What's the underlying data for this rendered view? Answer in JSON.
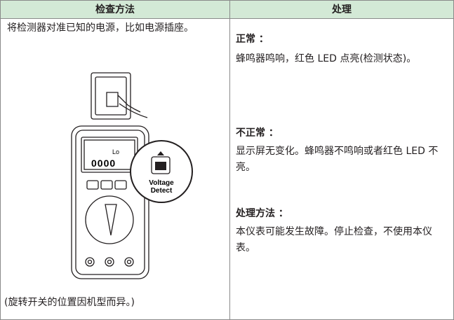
{
  "table": {
    "headers": [
      "检查方法",
      "处理"
    ],
    "method": {
      "text": "将检测器对准已知的电源，比如电源插座。",
      "note": "(旋转开关的位置因机型而异。)",
      "illustration": {
        "display_top": "Lo",
        "display_main": "0000",
        "button_label_1": "Voltage",
        "button_label_2": "Detect"
      }
    },
    "actions": [
      {
        "heading": "正常 ：",
        "text": "蜂鸣器鸣响，红色 LED 点亮(检测状态)。"
      },
      {
        "heading": "不正常 ：",
        "text": "显示屏无变化。蜂鸣器不鸣响或者红色 LED 不亮。"
      },
      {
        "heading": "处理方法 ：",
        "text": "本仪表可能发生故障。停止检查，不使用本仪表。"
      }
    ]
  }
}
